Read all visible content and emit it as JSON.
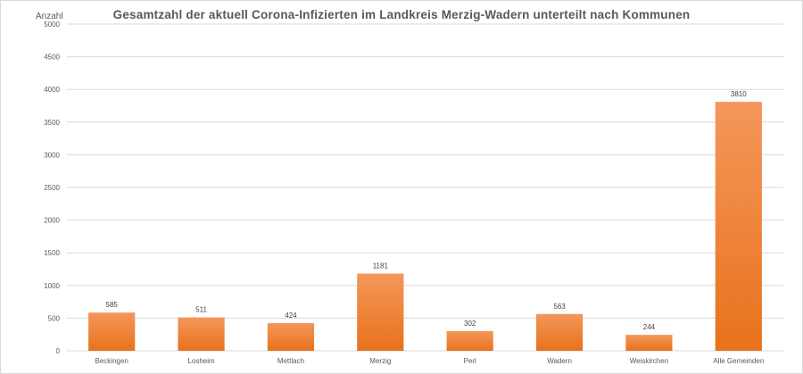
{
  "chart_data": {
    "type": "bar",
    "title": "Gesamtzahl  der aktuell Corona-Infizierten  im Landkreis Merzig-Wadern  unterteilt nach Kommunen",
    "ylabel": "Anzahl",
    "xlabel": "",
    "categories": [
      "Beckingen",
      "Losheim",
      "Mettlach",
      "Merzig",
      "Perl",
      "Wadern",
      "Weiskirchen",
      "Alle Gemeinden"
    ],
    "values": [
      585,
      511,
      424,
      1181,
      302,
      563,
      244,
      3810
    ],
    "ylim": [
      0,
      5000
    ],
    "yticks": [
      0,
      500,
      1000,
      1500,
      2000,
      2500,
      3000,
      3500,
      4000,
      4500,
      5000
    ],
    "grid": true,
    "legend": "none",
    "colors": {
      "bar_top": "#f4975a",
      "bar_bottom": "#e8721c",
      "grid": "#d9d9d9",
      "text": "#595959"
    }
  }
}
